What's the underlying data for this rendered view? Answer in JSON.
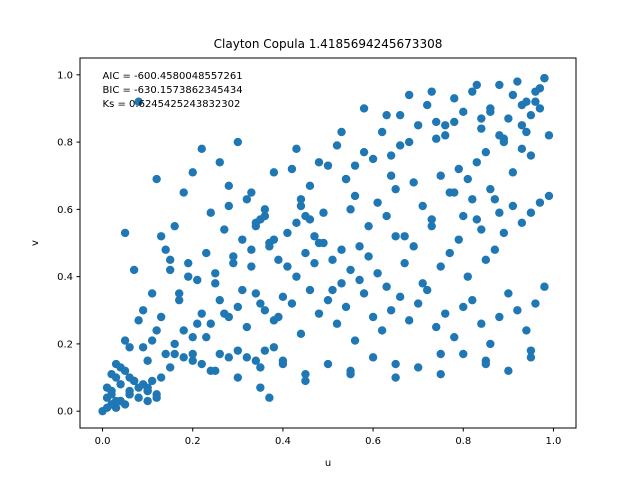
{
  "chart_data": {
    "type": "scatter",
    "title": "Clayton Copula 1.4185694245673308",
    "xlabel": "u",
    "ylabel": "v",
    "xlim": [
      -0.05,
      1.05
    ],
    "ylim": [
      -0.05,
      1.05
    ],
    "xticks": [
      "0.0",
      "0.2",
      "0.4",
      "0.6",
      "0.8",
      "1.0"
    ],
    "yticks": [
      "0.0",
      "0.2",
      "0.4",
      "0.6",
      "0.8",
      "1.0"
    ],
    "annotations": [
      "AIC = -600.4580048557261",
      "BIC = -630.1573862345434",
      "Ks = 0.6245425243832302"
    ],
    "grid": false,
    "marker_color": "#1f77b4",
    "series": [
      {
        "x": [
          0.0,
          0.01,
          0.02,
          0.01,
          0.03,
          0.02,
          0.04,
          0.05,
          0.01,
          0.02,
          0.03,
          0.04,
          0.06,
          0.05,
          0.03,
          0.02,
          0.07,
          0.06,
          0.08,
          0.09,
          0.1,
          0.11,
          0.12,
          0.13,
          0.1,
          0.09,
          0.12,
          0.14,
          0.11,
          0.08,
          0.05,
          0.04,
          0.06,
          0.07,
          0.1,
          0.12,
          0.15,
          0.16,
          0.18,
          0.2,
          0.22,
          0.24,
          0.26,
          0.28,
          0.3,
          0.32,
          0.34,
          0.36,
          0.38,
          0.4,
          0.03,
          0.05,
          0.07,
          0.09,
          0.11,
          0.13,
          0.15,
          0.17,
          0.19,
          0.21,
          0.23,
          0.25,
          0.27,
          0.29,
          0.31,
          0.33,
          0.35,
          0.37,
          0.39,
          0.41,
          0.43,
          0.45,
          0.47,
          0.49,
          0.51,
          0.53,
          0.55,
          0.57,
          0.59,
          0.61,
          0.63,
          0.65,
          0.67,
          0.69,
          0.71,
          0.73,
          0.75,
          0.77,
          0.79,
          0.81,
          0.83,
          0.85,
          0.87,
          0.89,
          0.91,
          0.93,
          0.95,
          0.97,
          0.99,
          0.98,
          0.06,
          0.08,
          0.1,
          0.12,
          0.14,
          0.16,
          0.18,
          0.2,
          0.22,
          0.24,
          0.26,
          0.28,
          0.3,
          0.32,
          0.34,
          0.36,
          0.38,
          0.42,
          0.44,
          0.46,
          0.48,
          0.5,
          0.52,
          0.54,
          0.56,
          0.58,
          0.6,
          0.62,
          0.64,
          0.66,
          0.68,
          0.7,
          0.72,
          0.74,
          0.76,
          0.78,
          0.8,
          0.82,
          0.84,
          0.86,
          0.88,
          0.9,
          0.92,
          0.94,
          0.96,
          0.97,
          0.95,
          0.93,
          0.91,
          0.89,
          0.13,
          0.15,
          0.17,
          0.19,
          0.21,
          0.23,
          0.25,
          0.27,
          0.29,
          0.31,
          0.33,
          0.35,
          0.37,
          0.39,
          0.41,
          0.43,
          0.45,
          0.47,
          0.49,
          0.51,
          0.53,
          0.55,
          0.57,
          0.59,
          0.61,
          0.63,
          0.65,
          0.67,
          0.69,
          0.71,
          0.73,
          0.75,
          0.77,
          0.79,
          0.81,
          0.83,
          0.85,
          0.87,
          0.89,
          0.91,
          0.93,
          0.95,
          0.97,
          0.99,
          0.88,
          0.86,
          0.84,
          0.82,
          0.8,
          0.78,
          0.16,
          0.18,
          0.2,
          0.22,
          0.24,
          0.26,
          0.28,
          0.3,
          0.32,
          0.34,
          0.36,
          0.38,
          0.4,
          0.42,
          0.44,
          0.46,
          0.48,
          0.5,
          0.52,
          0.54,
          0.56,
          0.58,
          0.6,
          0.62,
          0.64,
          0.66,
          0.68,
          0.7,
          0.72,
          0.74,
          0.76,
          0.78,
          0.8,
          0.82,
          0.84,
          0.86,
          0.88,
          0.9,
          0.92,
          0.94,
          0.96,
          0.98,
          0.35,
          0.37,
          0.45,
          0.55,
          0.65,
          0.75,
          0.85,
          0.95,
          0.2,
          0.25,
          0.3,
          0.35,
          0.4,
          0.45,
          0.5,
          0.55,
          0.6,
          0.65,
          0.7,
          0.75,
          0.8,
          0.85,
          0.9,
          0.95,
          0.33,
          0.43,
          0.53,
          0.63,
          0.73,
          0.83,
          0.93,
          0.28,
          0.38,
          0.48,
          0.58,
          0.68,
          0.78,
          0.88,
          0.98,
          0.34,
          0.36,
          0.44,
          0.46,
          0.54,
          0.56,
          0.64,
          0.66,
          0.74,
          0.76,
          0.84,
          0.86,
          0.94,
          0.96,
          0.02,
          0.04,
          0.06,
          0.08,
          0.1
        ],
        "y": [
          0.0,
          0.01,
          0.02,
          0.04,
          0.01,
          0.06,
          0.03,
          0.02,
          0.07,
          0.05,
          0.1,
          0.08,
          0.05,
          0.12,
          0.14,
          0.11,
          0.09,
          0.06,
          0.07,
          0.08,
          0.06,
          0.09,
          0.05,
          0.1,
          0.15,
          0.19,
          0.24,
          0.17,
          0.21,
          0.27,
          0.21,
          0.13,
          0.19,
          0.09,
          0.03,
          0.04,
          0.13,
          0.17,
          0.16,
          0.15,
          0.14,
          0.12,
          0.17,
          0.16,
          0.18,
          0.16,
          0.15,
          0.18,
          0.19,
          0.14,
          0.03,
          0.53,
          0.42,
          0.3,
          0.35,
          0.28,
          0.45,
          0.33,
          0.4,
          0.26,
          0.22,
          0.38,
          0.29,
          0.44,
          0.36,
          0.48,
          0.32,
          0.5,
          0.28,
          0.43,
          0.56,
          0.47,
          0.52,
          0.59,
          0.45,
          0.38,
          0.6,
          0.49,
          0.55,
          0.62,
          0.58,
          0.66,
          0.52,
          0.68,
          0.61,
          0.57,
          0.7,
          0.65,
          0.72,
          0.69,
          0.74,
          0.77,
          0.63,
          0.8,
          0.71,
          0.85,
          0.76,
          0.9,
          0.82,
          0.99,
          0.1,
          0.92,
          0.06,
          0.69,
          0.48,
          0.55,
          0.65,
          0.71,
          0.78,
          0.59,
          0.74,
          0.67,
          0.8,
          0.63,
          0.56,
          0.6,
          0.51,
          0.72,
          0.61,
          0.57,
          0.5,
          0.73,
          0.79,
          0.69,
          0.64,
          0.77,
          0.75,
          0.83,
          0.7,
          0.88,
          0.8,
          0.85,
          0.91,
          0.86,
          0.82,
          0.93,
          0.89,
          0.95,
          0.84,
          0.9,
          0.97,
          0.87,
          0.98,
          0.83,
          0.92,
          0.96,
          0.88,
          0.78,
          0.94,
          0.81,
          0.52,
          0.42,
          0.35,
          0.44,
          0.39,
          0.47,
          0.41,
          0.54,
          0.46,
          0.51,
          0.43,
          0.57,
          0.49,
          0.45,
          0.53,
          0.4,
          0.58,
          0.44,
          0.5,
          0.36,
          0.48,
          0.42,
          0.39,
          0.46,
          0.41,
          0.37,
          0.52,
          0.44,
          0.49,
          0.38,
          0.55,
          0.43,
          0.47,
          0.51,
          0.4,
          0.57,
          0.45,
          0.48,
          0.53,
          0.61,
          0.56,
          0.59,
          0.62,
          0.64,
          0.59,
          0.66,
          0.54,
          0.63,
          0.58,
          0.65,
          0.2,
          0.24,
          0.22,
          0.29,
          0.26,
          0.33,
          0.28,
          0.31,
          0.25,
          0.35,
          0.3,
          0.27,
          0.34,
          0.32,
          0.23,
          0.36,
          0.29,
          0.33,
          0.26,
          0.31,
          0.21,
          0.35,
          0.28,
          0.24,
          0.3,
          0.34,
          0.27,
          0.32,
          0.36,
          0.25,
          0.29,
          0.22,
          0.31,
          0.33,
          0.26,
          0.2,
          0.28,
          0.35,
          0.3,
          0.24,
          0.32,
          0.37,
          0.07,
          0.04,
          0.09,
          0.11,
          0.14,
          0.17,
          0.15,
          0.18,
          0.17,
          0.12,
          0.1,
          0.13,
          0.15,
          0.11,
          0.14,
          0.12,
          0.16,
          0.1,
          0.13,
          0.11,
          0.17,
          0.14,
          0.12,
          0.16,
          0.65,
          0.78,
          0.83,
          0.88,
          0.95,
          0.97,
          0.91,
          0.61,
          0.71,
          0.74,
          0.9,
          0.94,
          0.86,
          0.82,
          0.99,
          0.55,
          0.58,
          0.63,
          0.67,
          0.69,
          0.73,
          0.76,
          0.79,
          0.81,
          0.85,
          0.87,
          0.89,
          0.92,
          0.95,
          0.02,
          0.03,
          0.05,
          0.04,
          0.07
        ]
      }
    ]
  }
}
